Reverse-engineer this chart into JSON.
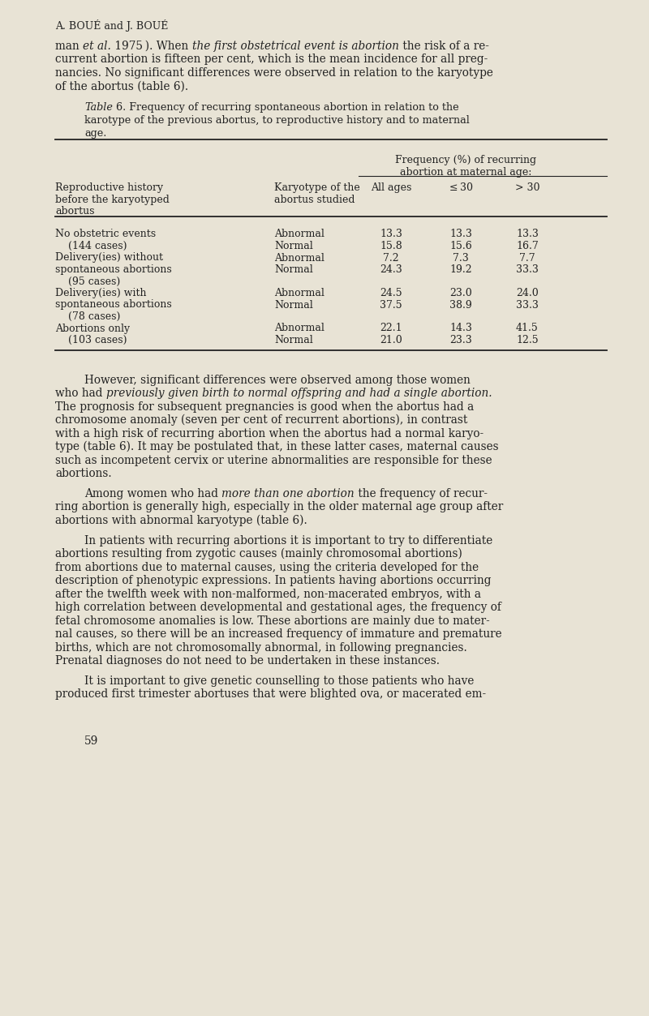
{
  "bg_color": "#e8e3d5",
  "text_color": "#222222",
  "page_width": 8.0,
  "page_height": 12.53,
  "header": "A. BOUÉ and J. BOUÉ",
  "table_rows": [
    [
      "No obstetric events",
      "Abnormal",
      "13.3",
      "13.3",
      "13.3"
    ],
    [
      "    (144 cases)",
      "Normal",
      "15.8",
      "15.6",
      "16.7"
    ],
    [
      "Delivery(ies) without",
      "Abnormal",
      "7.2",
      "7.3",
      "7.7"
    ],
    [
      "spontaneous abortions",
      "Normal",
      "24.3",
      "19.2",
      "33.3"
    ],
    [
      "    (95 cases)",
      "",
      "",
      "",
      ""
    ],
    [
      "Delivery(ies) with",
      "Abnormal",
      "24.5",
      "23.0",
      "24.0"
    ],
    [
      "spontaneous abortions",
      "Normal",
      "37.5",
      "38.9",
      "33.3"
    ],
    [
      "    (78 cases)",
      "",
      "",
      "",
      ""
    ],
    [
      "Abortions only",
      "Abnormal",
      "22.1",
      "14.3",
      "41.5"
    ],
    [
      "    (103 cases)",
      "Normal",
      "21.0",
      "23.3",
      "12.5"
    ]
  ],
  "page_number": "59",
  "font_size_header": 9.0,
  "font_size_body": 9.8,
  "font_size_table": 9.0,
  "font_size_caption": 9.2
}
